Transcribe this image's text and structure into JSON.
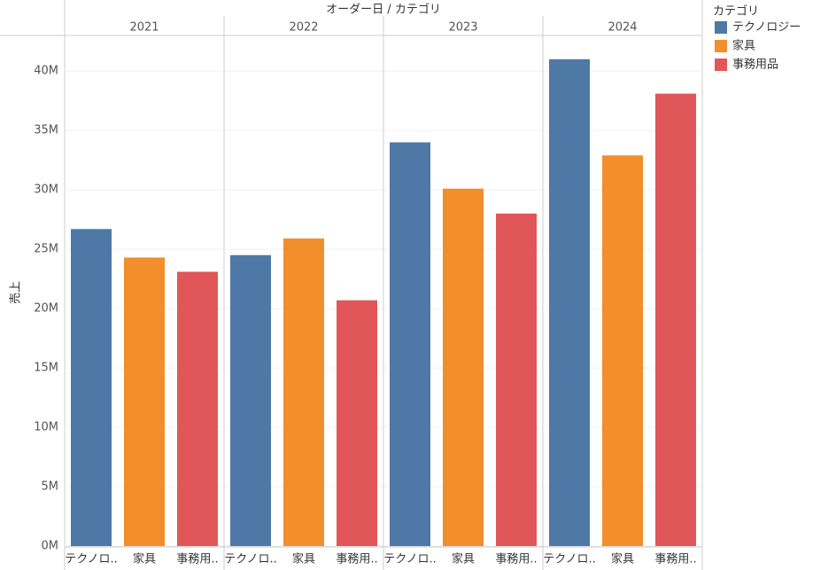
{
  "chart_data": {
    "type": "bar",
    "title": "オーダー日 / カテゴリ",
    "y_label": "売上",
    "legend_title": "カテゴリ",
    "groups": [
      "2021",
      "2022",
      "2023",
      "2024"
    ],
    "category_labels": [
      "テクノロ..",
      "家具",
      "事務用.."
    ],
    "series": [
      {
        "name": "テクノロジー",
        "color": "#4e79a7",
        "values": [
          26.7,
          24.5,
          34.0,
          41.0
        ]
      },
      {
        "name": "家具",
        "color": "#f28e2b",
        "values": [
          24.3,
          25.9,
          30.1,
          32.9
        ]
      },
      {
        "name": "事務用品",
        "color": "#e15759",
        "values": [
          23.1,
          20.7,
          28.0,
          38.1
        ]
      }
    ],
    "ylim": [
      0,
      43
    ],
    "yticks": [
      {
        "value": 0,
        "label": "0M"
      },
      {
        "value": 5,
        "label": "5M"
      },
      {
        "value": 10,
        "label": "10M"
      },
      {
        "value": 15,
        "label": "15M"
      },
      {
        "value": 20,
        "label": "20M"
      },
      {
        "value": 25,
        "label": "25M"
      },
      {
        "value": 30,
        "label": "30M"
      },
      {
        "value": 35,
        "label": "35M"
      },
      {
        "value": 40,
        "label": "40M"
      }
    ],
    "grid": true,
    "legend": "right"
  }
}
